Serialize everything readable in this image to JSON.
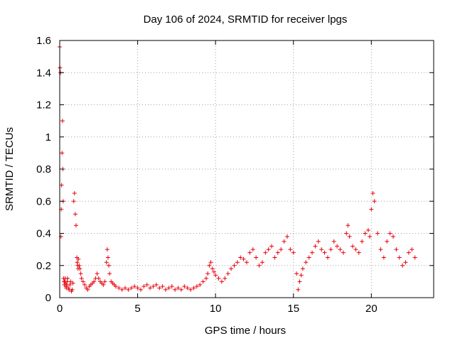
{
  "chart_data": {
    "type": "scatter",
    "title": "Day 106 of 2024, SRMTID for receiver lpgs",
    "xlabel": "GPS time / hours",
    "ylabel": "SRMTID / TECUs",
    "xlim": [
      0,
      24
    ],
    "ylim": [
      0,
      1.6
    ],
    "xticks": [
      0,
      5,
      10,
      15,
      20
    ],
    "yticks": [
      0,
      0.2,
      0.4,
      0.6,
      0.8,
      1,
      1.2,
      1.4,
      1.6
    ],
    "grid": true,
    "marker": "+",
    "color": "#e8000b",
    "series": [
      {
        "name": "SRMTID",
        "x": [
          0.0,
          0.02,
          0.05,
          0.08,
          0.1,
          0.12,
          0.15,
          0.18,
          0.2,
          0.22,
          0.25,
          0.28,
          0.3,
          0.32,
          0.35,
          0.38,
          0.4,
          0.42,
          0.45,
          0.48,
          0.5,
          0.55,
          0.6,
          0.65,
          0.7,
          0.75,
          0.8,
          0.85,
          0.9,
          0.95,
          1.0,
          1.05,
          1.1,
          1.12,
          1.15,
          1.18,
          1.2,
          1.25,
          1.3,
          1.35,
          1.4,
          1.5,
          1.6,
          1.7,
          1.8,
          1.9,
          2.0,
          2.1,
          2.2,
          2.3,
          2.4,
          2.5,
          2.6,
          2.7,
          2.8,
          2.9,
          3.0,
          3.05,
          3.1,
          3.15,
          3.2,
          3.3,
          3.4,
          3.5,
          3.6,
          3.8,
          4.0,
          4.2,
          4.4,
          4.6,
          4.8,
          5.0,
          5.2,
          5.4,
          5.6,
          5.8,
          6.0,
          6.2,
          6.4,
          6.6,
          6.8,
          7.0,
          7.2,
          7.4,
          7.6,
          7.8,
          8.0,
          8.2,
          8.4,
          8.6,
          8.8,
          9.0,
          9.2,
          9.4,
          9.5,
          9.6,
          9.7,
          9.8,
          9.9,
          10.0,
          10.2,
          10.4,
          10.6,
          10.8,
          11.0,
          11.2,
          11.4,
          11.6,
          11.8,
          12.0,
          12.2,
          12.4,
          12.6,
          12.8,
          13.0,
          13.2,
          13.4,
          13.6,
          13.8,
          14.0,
          14.2,
          14.4,
          14.6,
          14.8,
          15.0,
          15.2,
          15.3,
          15.4,
          15.5,
          15.6,
          15.8,
          16.0,
          16.2,
          16.4,
          16.6,
          16.8,
          17.0,
          17.2,
          17.4,
          17.6,
          17.8,
          18.0,
          18.2,
          18.4,
          18.5,
          18.6,
          18.8,
          19.0,
          19.2,
          19.4,
          19.6,
          19.8,
          19.9,
          20.0,
          20.1,
          20.2,
          20.4,
          20.6,
          20.8,
          21.0,
          21.2,
          21.4,
          21.6,
          21.8,
          22.0,
          22.2,
          22.4,
          22.6,
          22.8
        ],
        "y": [
          1.56,
          1.43,
          1.4,
          0.38,
          0.55,
          0.7,
          0.9,
          1.1,
          0.8,
          0.6,
          0.12,
          0.1,
          0.08,
          0.1,
          0.12,
          0.09,
          0.07,
          0.06,
          0.08,
          0.1,
          0.12,
          0.06,
          0.05,
          0.08,
          0.1,
          0.04,
          0.05,
          0.09,
          0.6,
          0.65,
          0.52,
          0.45,
          0.25,
          0.22,
          0.2,
          0.18,
          0.24,
          0.2,
          0.18,
          0.15,
          0.12,
          0.1,
          0.08,
          0.06,
          0.05,
          0.07,
          0.08,
          0.09,
          0.1,
          0.12,
          0.15,
          0.12,
          0.1,
          0.09,
          0.08,
          0.1,
          0.22,
          0.3,
          0.25,
          0.2,
          0.15,
          0.1,
          0.09,
          0.08,
          0.07,
          0.06,
          0.05,
          0.06,
          0.05,
          0.06,
          0.07,
          0.06,
          0.05,
          0.07,
          0.08,
          0.06,
          0.07,
          0.08,
          0.06,
          0.07,
          0.05,
          0.06,
          0.07,
          0.05,
          0.06,
          0.05,
          0.07,
          0.06,
          0.05,
          0.06,
          0.07,
          0.08,
          0.1,
          0.12,
          0.15,
          0.2,
          0.22,
          0.18,
          0.16,
          0.14,
          0.12,
          0.1,
          0.12,
          0.15,
          0.18,
          0.2,
          0.22,
          0.25,
          0.24,
          0.22,
          0.28,
          0.3,
          0.25,
          0.2,
          0.22,
          0.28,
          0.3,
          0.32,
          0.25,
          0.28,
          0.3,
          0.35,
          0.38,
          0.3,
          0.28,
          0.15,
          0.05,
          0.1,
          0.14,
          0.18,
          0.22,
          0.25,
          0.28,
          0.32,
          0.35,
          0.3,
          0.28,
          0.25,
          0.3,
          0.35,
          0.32,
          0.3,
          0.28,
          0.4,
          0.45,
          0.38,
          0.32,
          0.3,
          0.28,
          0.35,
          0.4,
          0.42,
          0.38,
          0.55,
          0.65,
          0.6,
          0.4,
          0.3,
          0.25,
          0.35,
          0.4,
          0.38,
          0.3,
          0.25,
          0.2,
          0.22,
          0.28,
          0.3,
          0.25
        ]
      }
    ]
  }
}
